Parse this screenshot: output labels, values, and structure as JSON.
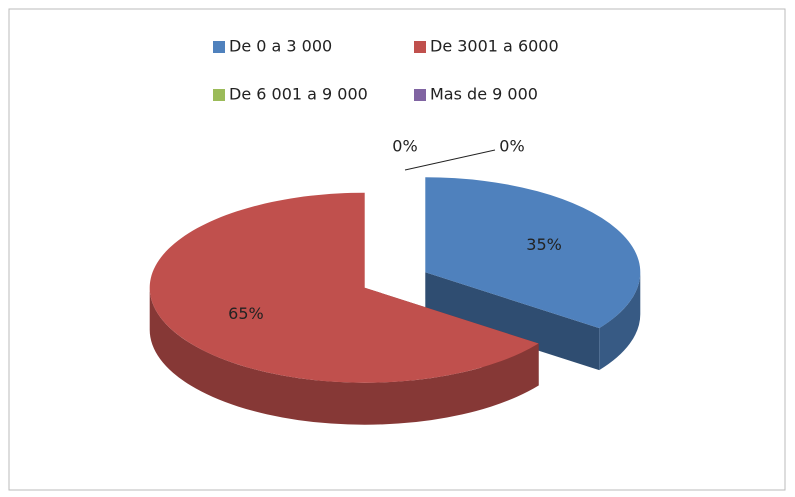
{
  "chart_data": {
    "type": "pie",
    "categories": [
      "De 0 a 3 000",
      "De 3001 a 6000",
      "De 6 001 a 9 000",
      "Mas de 9 000"
    ],
    "values": [
      35,
      65,
      0,
      0
    ],
    "value_labels": [
      "35%",
      "65%",
      "0%",
      "0%"
    ],
    "colors": [
      "#4f81bd",
      "#c0504d",
      "#9bbb59",
      "#8064a2"
    ],
    "legend": "top"
  }
}
